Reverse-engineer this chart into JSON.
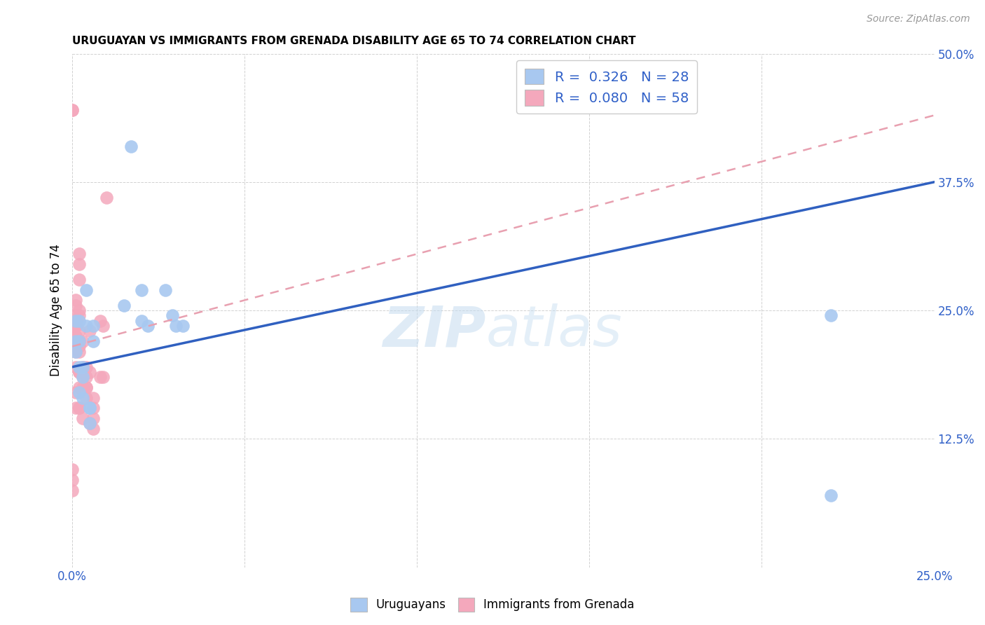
{
  "title": "URUGUAYAN VS IMMIGRANTS FROM GRENADA DISABILITY AGE 65 TO 74 CORRELATION CHART",
  "source": "Source: ZipAtlas.com",
  "ylabel": "Disability Age 65 to 74",
  "x_min": 0.0,
  "x_max": 0.25,
  "y_min": 0.0,
  "y_max": 0.5,
  "x_ticks": [
    0.0,
    0.05,
    0.1,
    0.15,
    0.2,
    0.25
  ],
  "x_tick_labels": [
    "0.0%",
    "",
    "",
    "",
    "",
    "25.0%"
  ],
  "y_ticks": [
    0.0,
    0.125,
    0.25,
    0.375,
    0.5
  ],
  "y_tick_labels": [
    "",
    "12.5%",
    "25.0%",
    "37.5%",
    "50.0%"
  ],
  "blue_color": "#A8C8F0",
  "pink_color": "#F4A8BC",
  "blue_line_color": "#3060C0",
  "pink_line_color": "#E06080",
  "pink_dash_color": "#E8A0B0",
  "legend_R_blue": "0.326",
  "legend_N_blue": "28",
  "legend_R_pink": "0.080",
  "legend_N_pink": "58",
  "watermark": "ZIPatlas",
  "blue_line_x0": 0.0,
  "blue_line_y0": 0.195,
  "blue_line_x1": 0.25,
  "blue_line_y1": 0.375,
  "pink_line_x0": 0.0,
  "pink_line_y0": 0.215,
  "pink_line_x1": 0.25,
  "pink_line_y1": 0.44,
  "blue_x": [
    0.001,
    0.001,
    0.001,
    0.002,
    0.002,
    0.002,
    0.002,
    0.003,
    0.003,
    0.003,
    0.004,
    0.004,
    0.005,
    0.005,
    0.005,
    0.006,
    0.006,
    0.015,
    0.017,
    0.02,
    0.02,
    0.022,
    0.027,
    0.029,
    0.03,
    0.032,
    0.22,
    0.22
  ],
  "blue_y": [
    0.22,
    0.24,
    0.21,
    0.24,
    0.22,
    0.195,
    0.17,
    0.195,
    0.185,
    0.165,
    0.27,
    0.235,
    0.155,
    0.155,
    0.14,
    0.235,
    0.22,
    0.255,
    0.41,
    0.24,
    0.27,
    0.235,
    0.27,
    0.245,
    0.235,
    0.235,
    0.245,
    0.07
  ],
  "pink_x": [
    0.0,
    0.0,
    0.0,
    0.0,
    0.0,
    0.001,
    0.001,
    0.001,
    0.001,
    0.001,
    0.001,
    0.001,
    0.001,
    0.001,
    0.001,
    0.001,
    0.001,
    0.001,
    0.001,
    0.001,
    0.002,
    0.002,
    0.002,
    0.002,
    0.002,
    0.002,
    0.002,
    0.002,
    0.002,
    0.002,
    0.002,
    0.002,
    0.002,
    0.002,
    0.002,
    0.002,
    0.003,
    0.003,
    0.003,
    0.003,
    0.003,
    0.004,
    0.004,
    0.004,
    0.004,
    0.004,
    0.005,
    0.005,
    0.005,
    0.006,
    0.006,
    0.006,
    0.006,
    0.008,
    0.008,
    0.009,
    0.009,
    0.01
  ],
  "pink_y": [
    0.445,
    0.445,
    0.095,
    0.085,
    0.075,
    0.235,
    0.225,
    0.22,
    0.215,
    0.21,
    0.155,
    0.26,
    0.255,
    0.245,
    0.24,
    0.24,
    0.235,
    0.225,
    0.195,
    0.17,
    0.305,
    0.295,
    0.25,
    0.245,
    0.22,
    0.19,
    0.28,
    0.22,
    0.215,
    0.21,
    0.19,
    0.175,
    0.155,
    0.23,
    0.19,
    0.155,
    0.22,
    0.195,
    0.185,
    0.175,
    0.145,
    0.195,
    0.185,
    0.175,
    0.175,
    0.165,
    0.23,
    0.19,
    0.14,
    0.165,
    0.155,
    0.145,
    0.135,
    0.24,
    0.185,
    0.235,
    0.185,
    0.36
  ]
}
